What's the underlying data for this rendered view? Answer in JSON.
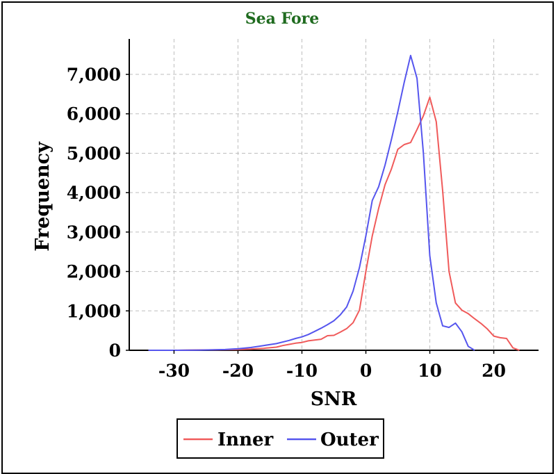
{
  "chart_data": {
    "type": "line",
    "title": "Sea Fore",
    "xlabel": "SNR",
    "ylabel": "Frequency",
    "xlim": [
      -37,
      27
    ],
    "ylim": [
      0,
      7900
    ],
    "x_ticks": [
      -30,
      -20,
      -10,
      0,
      10,
      20
    ],
    "x_tick_labels": [
      "-30",
      "-20",
      "-10",
      "0",
      "10",
      "20"
    ],
    "y_ticks": [
      0,
      1000,
      2000,
      3000,
      4000,
      5000,
      6000,
      7000
    ],
    "y_tick_labels": [
      "0",
      "1,000",
      "2,000",
      "3,000",
      "4,000",
      "5,000",
      "6,000",
      "7,000"
    ],
    "grid": true,
    "legend_position": "bottom",
    "series": [
      {
        "name": "Inner",
        "color": "#f05a5a",
        "points": [
          [
            -34,
            0
          ],
          [
            -30,
            0
          ],
          [
            -28,
            5
          ],
          [
            -24,
            10
          ],
          [
            -20,
            20
          ],
          [
            -18,
            30
          ],
          [
            -16,
            50
          ],
          [
            -14,
            80
          ],
          [
            -13,
            120
          ],
          [
            -12,
            150
          ],
          [
            -11,
            180
          ],
          [
            -10,
            200
          ],
          [
            -9,
            240
          ],
          [
            -8,
            260
          ],
          [
            -7,
            280
          ],
          [
            -6,
            370
          ],
          [
            -5,
            380
          ],
          [
            -4,
            460
          ],
          [
            -3,
            550
          ],
          [
            -2,
            700
          ],
          [
            -1,
            1020
          ],
          [
            0,
            2000
          ],
          [
            1,
            2900
          ],
          [
            2,
            3600
          ],
          [
            3,
            4200
          ],
          [
            4,
            4600
          ],
          [
            5,
            5100
          ],
          [
            6,
            5220
          ],
          [
            7,
            5270
          ],
          [
            8,
            5600
          ],
          [
            9,
            5950
          ],
          [
            10,
            6420
          ],
          [
            11,
            5800
          ],
          [
            12,
            4050
          ],
          [
            13,
            2000
          ],
          [
            14,
            1200
          ],
          [
            15,
            1020
          ],
          [
            16,
            930
          ],
          [
            17,
            800
          ],
          [
            18,
            680
          ],
          [
            19,
            540
          ],
          [
            20,
            360
          ],
          [
            21,
            320
          ],
          [
            22,
            300
          ],
          [
            23,
            60
          ],
          [
            24,
            0
          ]
        ]
      },
      {
        "name": "Outer",
        "color": "#5555ee",
        "points": [
          [
            -34,
            0
          ],
          [
            -30,
            0
          ],
          [
            -26,
            5
          ],
          [
            -24,
            10
          ],
          [
            -22,
            20
          ],
          [
            -20,
            40
          ],
          [
            -18,
            70
          ],
          [
            -16,
            120
          ],
          [
            -14,
            170
          ],
          [
            -12,
            250
          ],
          [
            -11,
            300
          ],
          [
            -10,
            340
          ],
          [
            -9,
            400
          ],
          [
            -8,
            480
          ],
          [
            -7,
            560
          ],
          [
            -6,
            650
          ],
          [
            -5,
            750
          ],
          [
            -4,
            900
          ],
          [
            -3,
            1100
          ],
          [
            -2,
            1500
          ],
          [
            -1,
            2100
          ],
          [
            0,
            2900
          ],
          [
            1,
            3800
          ],
          [
            2,
            4150
          ],
          [
            3,
            4700
          ],
          [
            4,
            5350
          ],
          [
            5,
            6050
          ],
          [
            6,
            6800
          ],
          [
            7,
            7480
          ],
          [
            8,
            6900
          ],
          [
            9,
            5000
          ],
          [
            10,
            2400
          ],
          [
            11,
            1200
          ],
          [
            12,
            620
          ],
          [
            13,
            580
          ],
          [
            14,
            690
          ],
          [
            15,
            470
          ],
          [
            16,
            100
          ],
          [
            17,
            0
          ]
        ]
      }
    ]
  }
}
